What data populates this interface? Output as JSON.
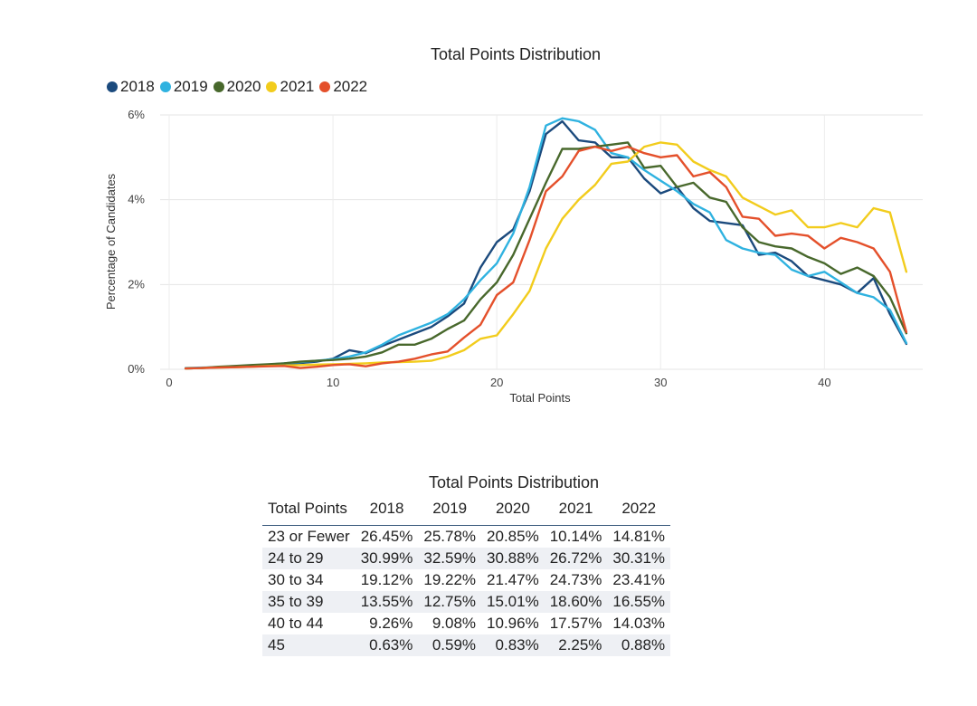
{
  "chart_data": {
    "type": "line",
    "title": "Total Points Distribution",
    "xlabel": "Total Points",
    "ylabel": "Percentage of Candidates",
    "xlim": [
      0,
      46
    ],
    "ylim": [
      0,
      6
    ],
    "xticks": [
      "0",
      "10",
      "20",
      "30",
      "40"
    ],
    "yticks": [
      "0%",
      "2%",
      "4%",
      "6%"
    ],
    "legend_position": "top-left",
    "grid": true,
    "x": [
      1,
      2,
      3,
      4,
      5,
      6,
      7,
      8,
      9,
      10,
      11,
      12,
      13,
      14,
      15,
      16,
      17,
      18,
      19,
      20,
      21,
      22,
      23,
      24,
      25,
      26,
      27,
      28,
      29,
      30,
      31,
      32,
      33,
      34,
      35,
      36,
      37,
      38,
      39,
      40,
      41,
      42,
      43,
      44,
      45
    ],
    "series": [
      {
        "name": "2018",
        "color": "#1b4a7d",
        "values": [
          0.02,
          0.03,
          0.05,
          0.06,
          0.08,
          0.1,
          0.12,
          0.15,
          0.18,
          0.25,
          0.45,
          0.38,
          0.55,
          0.7,
          0.85,
          1.0,
          1.25,
          1.55,
          2.4,
          3.0,
          3.3,
          4.2,
          5.55,
          5.85,
          5.4,
          5.35,
          5.0,
          5.0,
          4.5,
          4.15,
          4.3,
          3.8,
          3.5,
          3.45,
          3.4,
          2.7,
          2.75,
          2.55,
          2.2,
          2.1,
          2.0,
          1.8,
          2.15,
          1.3,
          0.6
        ]
      },
      {
        "name": "2019",
        "color": "#2fb2e0",
        "values": [
          0.03,
          0.04,
          0.05,
          0.07,
          0.09,
          0.11,
          0.14,
          0.17,
          0.2,
          0.24,
          0.3,
          0.4,
          0.58,
          0.8,
          0.95,
          1.1,
          1.3,
          1.65,
          2.1,
          2.5,
          3.2,
          4.3,
          5.75,
          5.92,
          5.85,
          5.65,
          5.1,
          5.0,
          4.7,
          4.45,
          4.2,
          3.9,
          3.7,
          3.05,
          2.85,
          2.75,
          2.7,
          2.35,
          2.2,
          2.3,
          2.05,
          1.8,
          1.7,
          1.4,
          0.62
        ]
      },
      {
        "name": "2020",
        "color": "#48682c",
        "values": [
          0.02,
          0.03,
          0.06,
          0.08,
          0.1,
          0.12,
          0.14,
          0.18,
          0.2,
          0.22,
          0.25,
          0.3,
          0.4,
          0.58,
          0.58,
          0.72,
          0.95,
          1.15,
          1.65,
          2.05,
          2.7,
          3.55,
          4.4,
          5.2,
          5.2,
          5.25,
          5.3,
          5.35,
          4.75,
          4.8,
          4.3,
          4.4,
          4.05,
          3.95,
          3.35,
          3.0,
          2.9,
          2.85,
          2.65,
          2.5,
          2.25,
          2.4,
          2.2,
          1.7,
          0.85
        ]
      },
      {
        "name": "2021",
        "color": "#f2cc1c",
        "values": [
          0.02,
          0.03,
          0.04,
          0.05,
          0.06,
          0.08,
          0.09,
          0.1,
          0.11,
          0.12,
          0.13,
          0.14,
          0.16,
          0.17,
          0.18,
          0.2,
          0.3,
          0.45,
          0.72,
          0.8,
          1.3,
          1.85,
          2.85,
          3.55,
          4.0,
          4.35,
          4.85,
          4.9,
          5.25,
          5.35,
          5.3,
          4.9,
          4.7,
          4.55,
          4.05,
          3.85,
          3.65,
          3.75,
          3.35,
          3.35,
          3.45,
          3.35,
          3.8,
          3.7,
          2.3
        ]
      },
      {
        "name": "2022",
        "color": "#e4502b",
        "values": [
          0.02,
          0.03,
          0.04,
          0.05,
          0.06,
          0.07,
          0.08,
          0.03,
          0.06,
          0.1,
          0.12,
          0.07,
          0.14,
          0.18,
          0.25,
          0.35,
          0.42,
          0.75,
          1.05,
          1.75,
          2.05,
          3.05,
          4.2,
          4.55,
          5.15,
          5.25,
          5.15,
          5.25,
          5.1,
          5.0,
          5.05,
          4.55,
          4.65,
          4.3,
          3.6,
          3.55,
          3.15,
          3.2,
          3.15,
          2.85,
          3.1,
          3.0,
          2.85,
          2.3,
          0.88
        ]
      }
    ]
  },
  "table": {
    "title": "Total Points Distribution",
    "headers": [
      "Total Points",
      "2018",
      "2019",
      "2020",
      "2021",
      "2022"
    ],
    "rows": [
      [
        "23 or Fewer",
        "26.45%",
        "25.78%",
        "20.85%",
        "10.14%",
        "14.81%"
      ],
      [
        "24 to 29",
        "30.99%",
        "32.59%",
        "30.88%",
        "26.72%",
        "30.31%"
      ],
      [
        "30 to 34",
        "19.12%",
        "19.22%",
        "21.47%",
        "24.73%",
        "23.41%"
      ],
      [
        "35 to 39",
        "13.55%",
        "12.75%",
        "15.01%",
        "18.60%",
        "16.55%"
      ],
      [
        "40 to 44",
        "9.26%",
        "9.08%",
        "10.96%",
        "17.57%",
        "14.03%"
      ],
      [
        "45",
        "0.63%",
        "0.59%",
        "0.83%",
        "2.25%",
        "0.88%"
      ]
    ]
  }
}
